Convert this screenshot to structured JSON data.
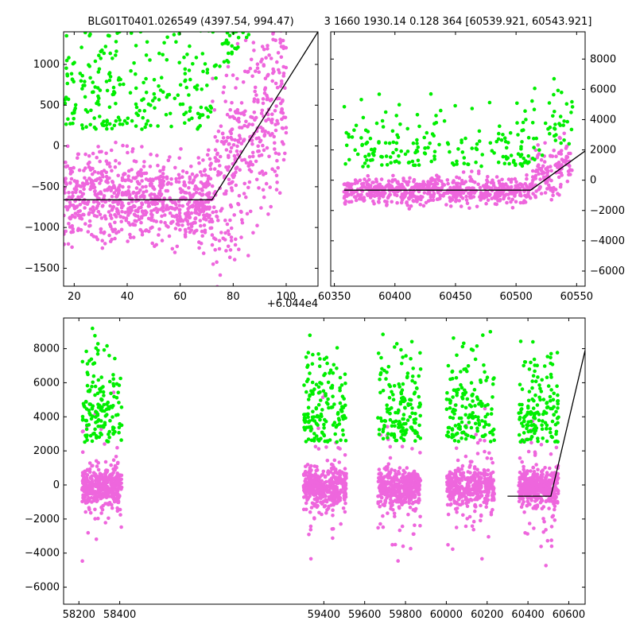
{
  "title_left": "BLG01T0401.026549 (4397.54, 994.47)",
  "title_right": "3 1660 1930.14 0.128 364 [60539.921, 60543.921]",
  "x_offset_label": "+6.044e4",
  "colors": {
    "baseline": "#ee66dd",
    "flux": "#00ee00",
    "model": "#000000"
  },
  "chart_data": [
    {
      "type": "scatter",
      "panel": "top-left zoom",
      "x_offset": 60440,
      "xlim": [
        16,
        112
      ],
      "ylim": [
        -1720,
        1400
      ],
      "x_ticks": [
        20,
        40,
        60,
        80,
        100
      ],
      "x_tick_labels": [
        "20",
        "40",
        "60",
        "80",
        "100"
      ],
      "y_ticks": [
        -1500,
        -1000,
        -500,
        0,
        500,
        1000
      ],
      "y_tick_labels": [
        "−1500",
        "−1000",
        "−500",
        "0",
        "500",
        "1000"
      ],
      "y_axis_side": "left",
      "model_line": [
        [
          16,
          -660
        ],
        [
          72,
          -660
        ],
        [
          112,
          1400
        ]
      ],
      "series": [
        {
          "color": "#ee66dd",
          "x_range": [
            16,
            112
          ],
          "segments": [
            [
              16,
              72,
              -650,
              260
            ],
            [
              72,
              100,
              -560,
              600
            ]
          ]
        },
        {
          "color": "#00ee00",
          "x_range": [
            16,
            112
          ],
          "segments": [
            [
              16,
              72,
              200,
              520
            ],
            [
              72,
              100,
              700,
              420
            ]
          ]
        }
      ]
    },
    {
      "type": "scatter",
      "panel": "top-right recent season",
      "xlim": [
        60347,
        60557
      ],
      "ylim": [
        -7000,
        9800
      ],
      "x_ticks": [
        60350,
        60400,
        60450,
        60500,
        60550
      ],
      "x_tick_labels": [
        "60350",
        "60400",
        "60450",
        "60500",
        "60550"
      ],
      "y_ticks": [
        -6000,
        -4000,
        -2000,
        0,
        2000,
        4000,
        6000,
        8000
      ],
      "y_tick_labels": [
        "−6000",
        "−4000",
        "−2000",
        "0",
        "2000",
        "4000",
        "6000",
        "8000"
      ],
      "y_axis_side": "right",
      "model_line": [
        [
          60358,
          -660
        ],
        [
          60512,
          -660
        ],
        [
          60557,
          1930
        ]
      ],
      "series": [
        {
          "color": "#ee66dd",
          "segments": [
            [
              60358,
              60512,
              -700,
              450
            ],
            [
              60512,
              60547,
              100,
              900
            ]
          ]
        },
        {
          "color": "#00ee00",
          "segments": [
            [
              60358,
              60512,
              900,
              1200
            ],
            [
              60512,
              60547,
              1200,
              1400
            ]
          ]
        }
      ]
    },
    {
      "type": "scatter",
      "panel": "bottom full light curve",
      "xlim": [
        58125,
        60680
      ],
      "ylim": [
        -7000,
        9800
      ],
      "x_ticks": [
        58200,
        58400,
        59400,
        59600,
        59800,
        60000,
        60200,
        60400,
        60600
      ],
      "x_tick_labels": [
        "58200",
        "58400",
        "59400",
        "59600",
        "59800",
        "60000",
        "60200",
        "60400",
        "60600"
      ],
      "y_ticks": [
        -6000,
        -4000,
        -2000,
        0,
        2000,
        4000,
        6000,
        8000
      ],
      "y_tick_labels": [
        "−6000",
        "−4000",
        "−2000",
        "0",
        "2000",
        "4000",
        "6000",
        "8000"
      ],
      "y_axis_side": "left",
      "model_line": [
        [
          60300,
          -660
        ],
        [
          60512,
          -660
        ],
        [
          60680,
          7900
        ]
      ],
      "seasons": [
        [
          58215,
          58410
        ],
        [
          59300,
          59510
        ],
        [
          59665,
          59875
        ],
        [
          60000,
          60235
        ],
        [
          60355,
          60550
        ]
      ],
      "series": [
        {
          "color": "#ee66dd",
          "center": -100,
          "spread": 1200
        },
        {
          "color": "#00ee00",
          "center": 2500,
          "spread": 3000
        }
      ]
    }
  ]
}
